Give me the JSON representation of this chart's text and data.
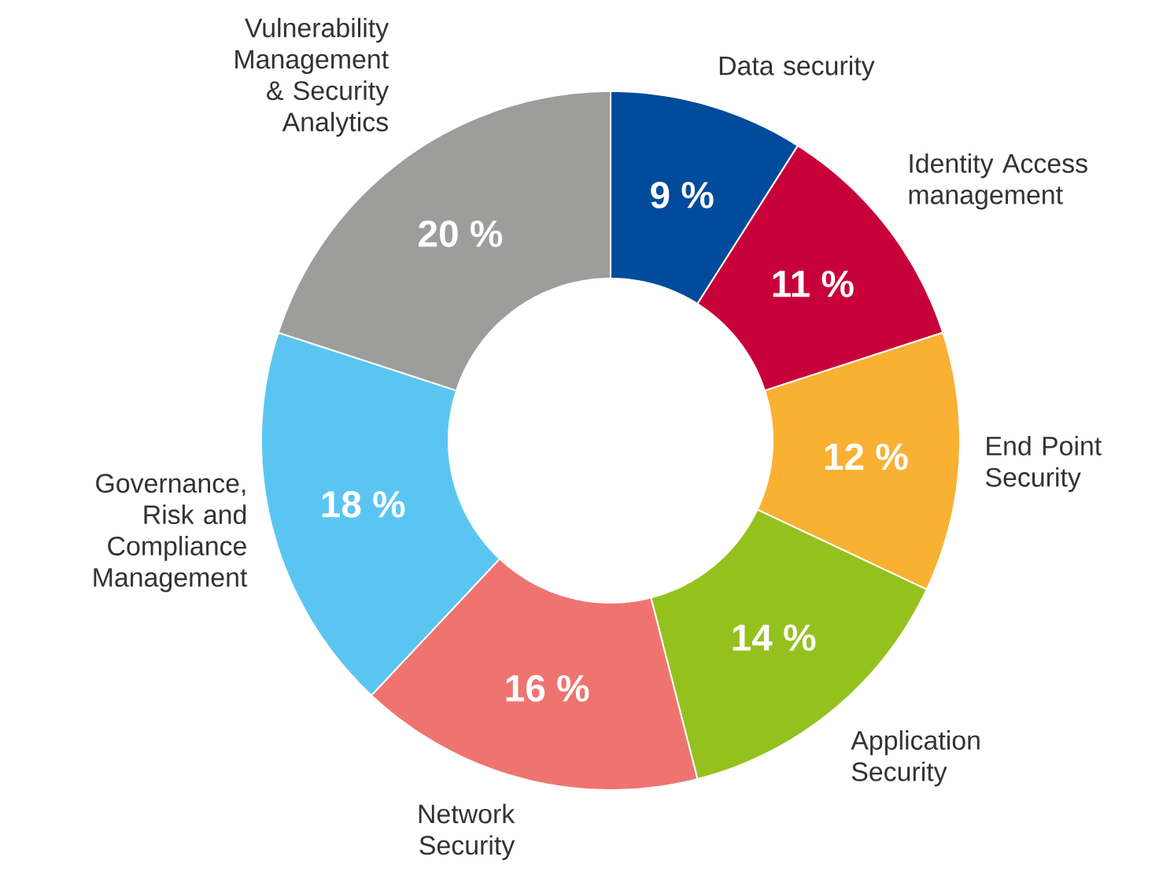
{
  "chart_data": {
    "type": "donut",
    "categories": [
      "Data security",
      "Identity Access management",
      "End Point Security",
      "Application Security",
      "Network Security",
      "Governance, Risk and Compliance Management",
      "Vulnerability Management & Security Analytics"
    ],
    "values": [
      9,
      11,
      12,
      14,
      16,
      18,
      20
    ],
    "colors": [
      "#004b9b",
      "#c8003a",
      "#f8b133",
      "#95c11f",
      "#ef7470",
      "#5bc5f2",
      "#9d9d9c"
    ],
    "value_labels": [
      "9 %",
      "11 %",
      "12 %",
      "14 %",
      "16 %",
      "18 %",
      "20 %"
    ]
  }
}
